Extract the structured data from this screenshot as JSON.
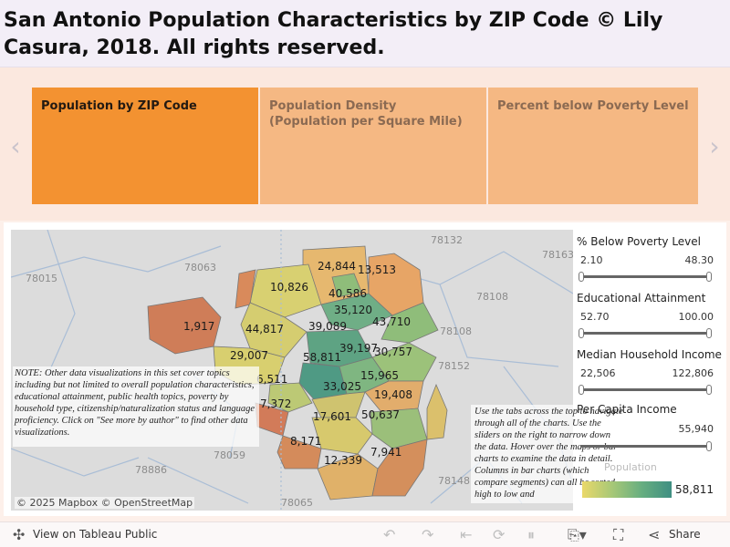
{
  "title": "San Antonio Population Characteristics by ZIP Code © Lily Casura, 2018. All rights reserved.",
  "story": {
    "prev_arrow": "‹",
    "next_arrow": "›",
    "tabs": [
      {
        "label": "Population by ZIP Code",
        "active": true
      },
      {
        "label": "Population Density (Population per Square Mile)",
        "active": false
      },
      {
        "label": "Percent below Poverty Level",
        "active": false
      }
    ]
  },
  "map": {
    "zip_values": [
      "24,844",
      "13,513",
      "10,826",
      "40,586",
      "35,120",
      "1,917",
      "44,817",
      "43,710",
      "39,089",
      "29,007",
      "39,197",
      "30,757",
      "58,811",
      "6,511",
      "15,965",
      "33,025",
      "7,372",
      "19,408",
      "17,601",
      "50,637",
      "8,171",
      "7,941",
      "12,339"
    ],
    "background_zips": [
      "78132",
      "78163",
      "78108",
      "78063",
      "78108",
      "78015",
      "78152",
      "78059",
      "78886",
      "78065",
      "78148"
    ],
    "note_left": "NOTE: Other data visualizations in this set cover topics including but not limited to overall population characteristics, educational attainment, public health topics, poverty by household type, citizenship/naturalization status and language proficiency. Click on \"See more by author\" to find other data visualizations.",
    "note_right": "Use the tabs across the top to navigate through all of the charts. Use the sliders on the right to narrow down the data. Hover over the maps or bar charts to examine the data in detail. Columns in bar charts (which compare segments) can all be sorted high to low and",
    "attribution": "© 2025 Mapbox  © OpenStreetMap"
  },
  "filters": [
    {
      "title": "% Below Poverty Level",
      "min": "2.10",
      "max": "48.30"
    },
    {
      "title": "Educational Attainment",
      "min": "52.70",
      "max": "100.00"
    },
    {
      "title": "Median Household Income",
      "min": "22,506",
      "max": "122,806"
    },
    {
      "title": "Per Capita Income",
      "min": "",
      "max": "55,940"
    }
  ],
  "legend": {
    "title": "Population",
    "value": "58,811"
  },
  "footer": {
    "view_label": "View on Tableau Public",
    "share_label": "Share"
  },
  "colors": {
    "active_tab": "#f39231",
    "inactive_tab": "#f5b883",
    "low": "#e6a86b",
    "mid": "#cbd165",
    "high": "#3f8f82"
  }
}
